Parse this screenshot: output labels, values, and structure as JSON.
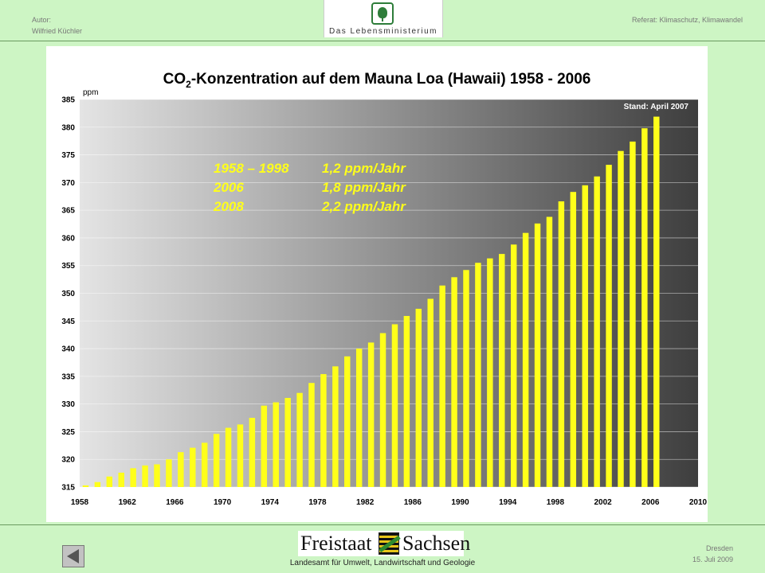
{
  "header": {
    "author_label": "Autor:",
    "author_name": "Wilfried Küchler",
    "logo_text": "Das Lebensministerium",
    "referat": "Referat: Klimaschutz, Klimawandel"
  },
  "footer": {
    "state_word1": "Freistaat",
    "state_word2": "Sachsen",
    "agency": "Landesamt für Umwelt, Landwirtschaft und Geologie",
    "city": "Dresden",
    "date": "15. Juli 2009",
    "back_icon": "back-arrow-icon"
  },
  "chart_data": {
    "type": "bar",
    "title_pre": "CO",
    "title_sub": "2",
    "title_post": "-Konzentration auf dem Mauna Loa (Hawaii) 1958 - 2006",
    "ylabel": "ppm",
    "stand": "Stand: April 2007",
    "ylim": [
      315,
      385
    ],
    "yticks": [
      315,
      320,
      325,
      330,
      335,
      340,
      345,
      350,
      355,
      360,
      365,
      370,
      375,
      380,
      385
    ],
    "xlim": [
      1958,
      2010
    ],
    "xticks": [
      1958,
      1962,
      1966,
      1970,
      1974,
      1978,
      1982,
      1986,
      1990,
      1994,
      1998,
      2002,
      2006,
      2010
    ],
    "grid": true,
    "years": [
      1958,
      1959,
      1960,
      1961,
      1962,
      1963,
      1964,
      1965,
      1966,
      1967,
      1968,
      1969,
      1970,
      1971,
      1972,
      1973,
      1974,
      1975,
      1976,
      1977,
      1978,
      1979,
      1980,
      1981,
      1982,
      1983,
      1984,
      1985,
      1986,
      1987,
      1988,
      1989,
      1990,
      1991,
      1992,
      1993,
      1994,
      1995,
      1996,
      1997,
      1998,
      1999,
      2000,
      2001,
      2002,
      2003,
      2004,
      2005,
      2006
    ],
    "values": [
      315.3,
      315.9,
      316.9,
      317.6,
      318.4,
      318.9,
      319.1,
      320.0,
      321.3,
      322.1,
      323.0,
      324.6,
      325.7,
      326.3,
      327.5,
      329.7,
      330.3,
      331.1,
      332.0,
      333.8,
      335.4,
      336.8,
      338.6,
      340.0,
      341.1,
      342.8,
      344.4,
      345.9,
      347.2,
      349.0,
      351.4,
      352.9,
      354.2,
      355.5,
      356.3,
      357.1,
      358.8,
      360.9,
      362.6,
      363.8,
      366.6,
      368.3,
      369.5,
      371.1,
      373.2,
      375.7,
      377.4,
      379.8,
      381.9
    ],
    "bar_color": "#ffff1a",
    "annotations": [
      {
        "period": "1958 – 1998",
        "rate": "1,2 ppm/Jahr"
      },
      {
        "period": "2006",
        "rate": "1,8 ppm/Jahr"
      },
      {
        "period": "2008",
        "rate": "2,2 ppm/Jahr"
      }
    ],
    "annotation_color": "#ffff1a"
  }
}
